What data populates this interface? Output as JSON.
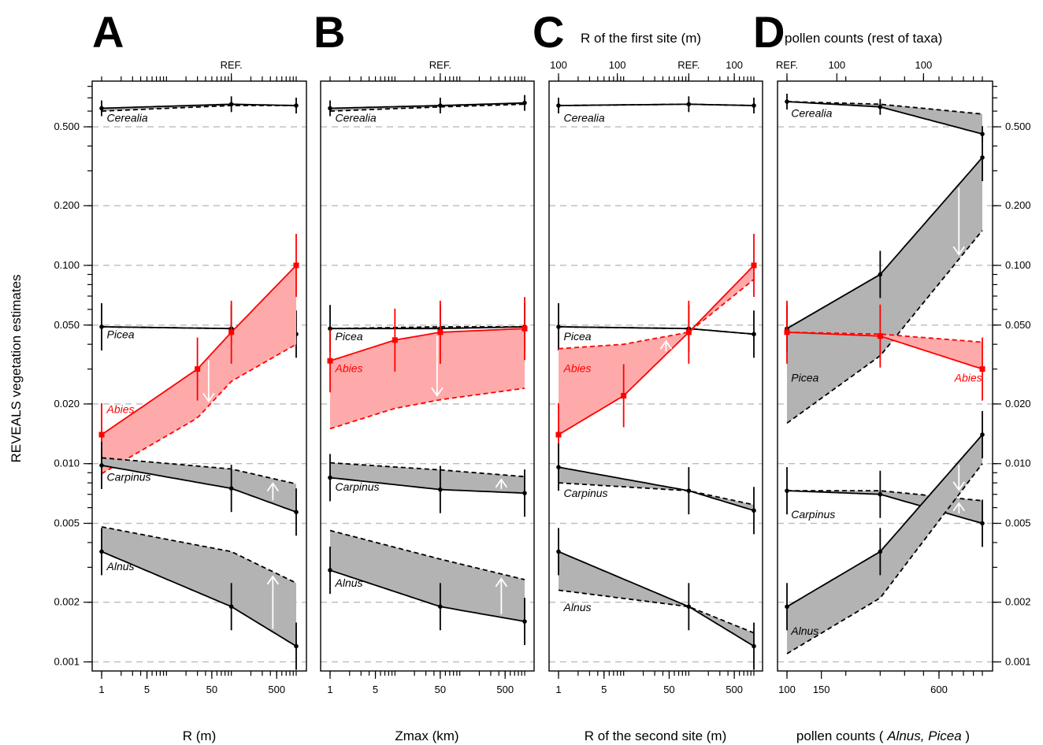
{
  "figure": {
    "ylabel": "REVEALS vegetation estimates",
    "y_scale": "log",
    "ylim": [
      0.0009,
      0.85
    ],
    "y_ticks": [
      0.001,
      0.002,
      0.005,
      0.01,
      0.02,
      0.05,
      0.1,
      0.2,
      0.5
    ],
    "y_tick_labels": [
      "0.001",
      "0.002",
      "0.005",
      "0.010",
      "0.020",
      "0.050",
      "0.100",
      "0.200",
      "0.500"
    ],
    "grid": "dashed horizontal at y ticks",
    "colors": {
      "gray_band": "#b3b3b3",
      "red_band": "#ffaaaa",
      "red_line": "#ff0000",
      "black": "#000000",
      "arrow": "#ffffff"
    }
  },
  "chart_data": [
    {
      "id": "A",
      "type": "line",
      "letter": "A",
      "top_axis_title": "",
      "xlabel": "R (m)",
      "x_scale": "log",
      "xlim": [
        1,
        1000
      ],
      "x_ticks": [
        1,
        5,
        50,
        500
      ],
      "x_tick_labels": [
        "1",
        "5",
        "50",
        "500"
      ],
      "top_tick_labels": [
        {
          "x": 100,
          "label": "REF."
        }
      ],
      "series": [
        {
          "name": "Cerealia",
          "color": "#000000",
          "band": "gray",
          "x": [
            1,
            100,
            1000
          ],
          "solid": [
            0.62,
            0.65,
            0.64
          ],
          "dashed": [
            0.6,
            0.64,
            0.64
          ],
          "label_pos": [
            1.2,
            0.53
          ]
        },
        {
          "name": "Picea",
          "color": "#000000",
          "band": "gray",
          "x": [
            1,
            100,
            1000
          ],
          "solid": [
            0.049,
            0.048,
            0.045
          ],
          "dashed": [
            0.049,
            0.048,
            0.047
          ],
          "label_pos": [
            1.2,
            0.043
          ]
        },
        {
          "name": "Abies",
          "color": "#ff0000",
          "band": "red",
          "x": [
            1,
            30,
            100,
            1000
          ],
          "solid": [
            0.014,
            0.03,
            0.046,
            0.1
          ],
          "dashed": [
            0.0089,
            0.017,
            0.026,
            0.04
          ],
          "label_pos": [
            1.2,
            0.018
          ]
        },
        {
          "name": "Carpinus",
          "color": "#000000",
          "band": "gray",
          "x": [
            1,
            100,
            1000
          ],
          "solid": [
            0.0098,
            0.0075,
            0.0057
          ],
          "dashed": [
            0.0107,
            0.0094,
            0.0079
          ],
          "label_pos": [
            1.2,
            0.0082
          ]
        },
        {
          "name": "Alnus",
          "color": "#000000",
          "band": "gray",
          "x": [
            1,
            100,
            1000
          ],
          "solid": [
            0.0036,
            0.0019,
            0.0012
          ],
          "dashed": [
            0.0048,
            0.0036,
            0.0025
          ],
          "label_pos": [
            1.2,
            0.0029
          ]
        }
      ]
    },
    {
      "id": "B",
      "type": "line",
      "letter": "B",
      "top_axis_title": "",
      "xlabel": "Zmax (km)",
      "x_scale": "log",
      "xlim": [
        1,
        1000
      ],
      "x_ticks": [
        1,
        5,
        50,
        500
      ],
      "x_tick_labels": [
        "1",
        "5",
        "50",
        "500"
      ],
      "top_tick_labels": [
        {
          "x": 50,
          "label": "REF."
        }
      ],
      "series": [
        {
          "name": "Cerealia",
          "color": "#000000",
          "band": "gray",
          "x": [
            1,
            50,
            1000
          ],
          "solid": [
            0.62,
            0.64,
            0.66
          ],
          "dashed": [
            0.6,
            0.63,
            0.65
          ],
          "label_pos": [
            1.2,
            0.53
          ]
        },
        {
          "name": "Picea",
          "color": "#000000",
          "band": "gray",
          "x": [
            1,
            50,
            1000
          ],
          "solid": [
            0.048,
            0.048,
            0.049
          ],
          "dashed": [
            0.048,
            0.049,
            0.049
          ],
          "label_pos": [
            1.2,
            0.042
          ]
        },
        {
          "name": "Abies",
          "color": "#ff0000",
          "band": "red",
          "x": [
            1,
            10,
            50,
            1000
          ],
          "solid": [
            0.033,
            0.042,
            0.046,
            0.048
          ],
          "dashed": [
            0.015,
            0.019,
            0.021,
            0.024
          ],
          "label_pos": [
            1.2,
            0.029
          ]
        },
        {
          "name": "Carpinus",
          "color": "#000000",
          "band": "gray",
          "x": [
            1,
            50,
            1000
          ],
          "solid": [
            0.0085,
            0.0074,
            0.0071
          ],
          "dashed": [
            0.0101,
            0.0093,
            0.0086
          ],
          "label_pos": [
            1.2,
            0.0073
          ]
        },
        {
          "name": "Alnus",
          "color": "#000000",
          "band": "gray",
          "x": [
            1,
            50,
            1000
          ],
          "solid": [
            0.0029,
            0.0019,
            0.0016
          ],
          "dashed": [
            0.0046,
            0.0033,
            0.0026
          ],
          "label_pos": [
            1.2,
            0.0024
          ]
        }
      ]
    },
    {
      "id": "C",
      "type": "line",
      "letter": "C",
      "top_axis_title": "R of the first site (m)",
      "xlabel": "R of the second site (m)",
      "x_scale": "log",
      "xlim": [
        1,
        1000
      ],
      "x_ticks": [
        1,
        5,
        50,
        500
      ],
      "x_tick_labels": [
        "1",
        "5",
        "50",
        "500"
      ],
      "top_tick_labels": [
        {
          "x": 1,
          "label": "100"
        },
        {
          "x": 8,
          "label": "100"
        },
        {
          "x": 100,
          "label": "REF."
        },
        {
          "x": 500,
          "label": "100"
        }
      ],
      "series": [
        {
          "name": "Cerealia",
          "color": "#000000",
          "band": "gray",
          "x": [
            1,
            100,
            1000
          ],
          "solid": [
            0.64,
            0.65,
            0.64
          ],
          "dashed": [
            0.64,
            0.65,
            0.64
          ],
          "label_pos": [
            1.2,
            0.53
          ]
        },
        {
          "name": "Picea",
          "color": "#000000",
          "band": "gray",
          "x": [
            1,
            100,
            1000
          ],
          "solid": [
            0.049,
            0.048,
            0.045
          ],
          "dashed": [
            0.049,
            0.048,
            0.045
          ],
          "label_pos": [
            1.2,
            0.042
          ]
        },
        {
          "name": "Abies",
          "color": "#ff0000",
          "band": "red",
          "x": [
            1,
            10,
            100,
            1000
          ],
          "solid": [
            0.014,
            0.022,
            0.046,
            0.1
          ],
          "dashed": [
            0.038,
            0.04,
            0.046,
            0.085
          ],
          "label_pos": [
            1.2,
            0.029
          ]
        },
        {
          "name": "Carpinus",
          "color": "#000000",
          "band": "gray",
          "x": [
            1,
            100,
            1000
          ],
          "solid": [
            0.0096,
            0.0073,
            0.0058
          ],
          "dashed": [
            0.008,
            0.0073,
            0.0062
          ],
          "label_pos": [
            1.2,
            0.0068
          ]
        },
        {
          "name": "Alnus",
          "color": "#000000",
          "band": "gray",
          "x": [
            1,
            100,
            1000
          ],
          "solid": [
            0.0036,
            0.0019,
            0.0012
          ],
          "dashed": [
            0.0023,
            0.0019,
            0.0014
          ],
          "label_pos": [
            1.2,
            0.0018
          ]
        }
      ]
    },
    {
      "id": "D",
      "type": "line",
      "letter": "D",
      "top_axis_title": "pollen counts (rest of taxa)",
      "xlabel_parts": [
        "pollen counts ( ",
        "Alnus, Picea",
        " )"
      ],
      "x_scale": "log",
      "xlim": [
        100,
        1000
      ],
      "x_ticks": [
        100,
        150,
        600
      ],
      "x_tick_labels": [
        "100",
        "150",
        "600"
      ],
      "top_tick_labels": [
        {
          "x": 100,
          "label": "REF."
        },
        {
          "x": 180,
          "label": "100"
        },
        {
          "x": 500,
          "label": "100"
        }
      ],
      "series": [
        {
          "name": "Cerealia",
          "color": "#000000",
          "band": "gray",
          "x": [
            100,
            300,
            1000
          ],
          "solid": [
            0.67,
            0.63,
            0.46
          ],
          "dashed": [
            0.67,
            0.65,
            0.58
          ],
          "label_pos": [
            105,
            0.56
          ]
        },
        {
          "name": "Picea",
          "color": "#000000",
          "band": "gray",
          "x": [
            100,
            300,
            1000
          ],
          "solid": [
            0.048,
            0.09,
            0.35
          ],
          "dashed": [
            0.016,
            0.035,
            0.15
          ],
          "label_pos": [
            105,
            0.026
          ]
        },
        {
          "name": "Abies",
          "color": "#ff0000",
          "band": "red",
          "x": [
            100,
            300,
            1000
          ],
          "solid": [
            0.046,
            0.044,
            0.03
          ],
          "dashed": [
            0.046,
            0.045,
            0.041
          ],
          "label_pos": [
            720,
            0.026
          ]
        },
        {
          "name": "Carpinus",
          "color": "#000000",
          "band": "gray",
          "x": [
            100,
            300,
            1000
          ],
          "solid": [
            0.0073,
            0.007,
            0.005
          ],
          "dashed": [
            0.0073,
            0.0073,
            0.0065
          ],
          "label_pos": [
            105,
            0.0053
          ]
        },
        {
          "name": "Alnus",
          "color": "#000000",
          "band": "gray",
          "x": [
            100,
            300,
            1000
          ],
          "solid": [
            0.0019,
            0.0036,
            0.014
          ],
          "dashed": [
            0.0011,
            0.0021,
            0.01
          ],
          "label_pos": [
            105,
            0.00137
          ]
        }
      ]
    }
  ]
}
